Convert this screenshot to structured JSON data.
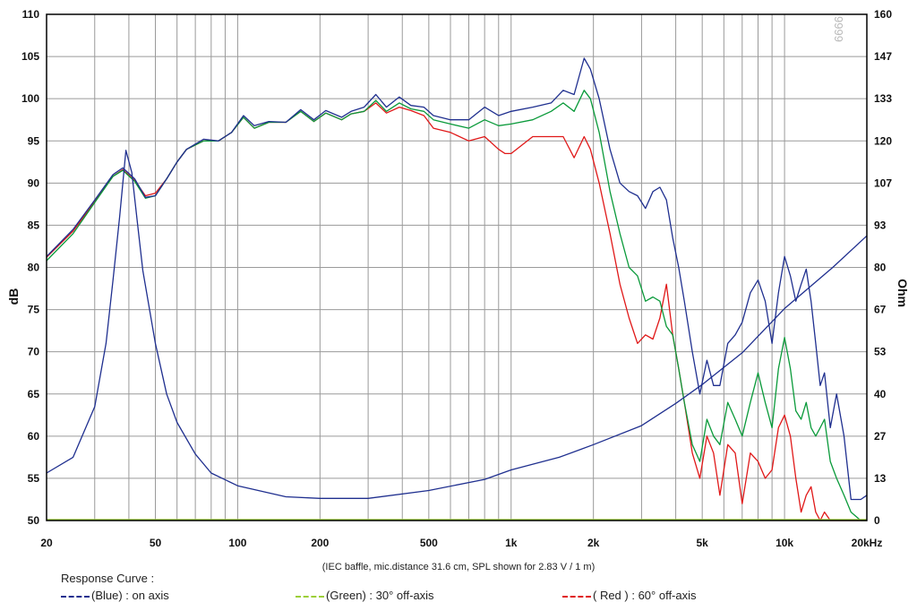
{
  "chart_data": {
    "type": "line",
    "ylabel_left": "dB",
    "ylabel_right": "Ohm",
    "x_scale": "log",
    "xlim": [
      20,
      20000
    ],
    "ylim_left": [
      50,
      110
    ],
    "ylim_right": [
      0,
      160
    ],
    "grid": true,
    "x_tick_labels": [
      {
        "value": 20,
        "label": "20"
      },
      {
        "value": 50,
        "label": "50"
      },
      {
        "value": 100,
        "label": "100"
      },
      {
        "value": 200,
        "label": "200"
      },
      {
        "value": 500,
        "label": "500"
      },
      {
        "value": 1000,
        "label": "1k"
      },
      {
        "value": 2000,
        "label": "2k"
      },
      {
        "value": 5000,
        "label": "5k"
      },
      {
        "value": 10000,
        "label": "10k"
      },
      {
        "value": 20000,
        "label": "20kHz"
      }
    ],
    "y_ticks_left": [
      110,
      105,
      100,
      95,
      90,
      85,
      80,
      75,
      70,
      65,
      60,
      55,
      50
    ],
    "y_ticks_right": [
      "160",
      "147",
      "133",
      "120",
      "107",
      "93",
      "80",
      "67",
      "53",
      "40",
      "27",
      "13",
      "0"
    ],
    "series": [
      {
        "name": "(Blue) : on axis",
        "color": "#1f2f8f",
        "axis": "left",
        "points": [
          [
            20,
            81.3
          ],
          [
            25,
            84.5
          ],
          [
            30,
            88
          ],
          [
            35,
            91
          ],
          [
            38,
            91.8
          ],
          [
            42,
            90.5
          ],
          [
            46,
            88.3
          ],
          [
            50,
            88.5
          ],
          [
            55,
            90.5
          ],
          [
            60,
            92.5
          ],
          [
            65,
            94
          ],
          [
            75,
            95.2
          ],
          [
            85,
            95
          ],
          [
            95,
            96
          ],
          [
            105,
            98
          ],
          [
            115,
            96.8
          ],
          [
            130,
            97.3
          ],
          [
            150,
            97.2
          ],
          [
            170,
            98.7
          ],
          [
            190,
            97.5
          ],
          [
            210,
            98.6
          ],
          [
            240,
            97.8
          ],
          [
            260,
            98.5
          ],
          [
            290,
            99
          ],
          [
            320,
            100.5
          ],
          [
            350,
            99
          ],
          [
            390,
            100.2
          ],
          [
            430,
            99.2
          ],
          [
            480,
            99
          ],
          [
            520,
            98
          ],
          [
            600,
            97.5
          ],
          [
            700,
            97.5
          ],
          [
            800,
            99
          ],
          [
            900,
            98
          ],
          [
            1000,
            98.5
          ],
          [
            1200,
            99
          ],
          [
            1400,
            99.5
          ],
          [
            1550,
            101
          ],
          [
            1700,
            100.5
          ],
          [
            1850,
            104.8
          ],
          [
            1950,
            103.5
          ],
          [
            2100,
            100
          ],
          [
            2300,
            94
          ],
          [
            2500,
            90
          ],
          [
            2700,
            89
          ],
          [
            2900,
            88.5
          ],
          [
            3100,
            87
          ],
          [
            3300,
            89
          ],
          [
            3500,
            89.5
          ],
          [
            3700,
            88
          ],
          [
            3900,
            83.5
          ],
          [
            4100,
            80
          ],
          [
            4300,
            76
          ],
          [
            4600,
            70
          ],
          [
            4900,
            65
          ],
          [
            5200,
            69
          ],
          [
            5500,
            66
          ],
          [
            5800,
            66
          ],
          [
            6200,
            71
          ],
          [
            6600,
            72
          ],
          [
            7000,
            73.5
          ],
          [
            7500,
            77
          ],
          [
            8000,
            78.5
          ],
          [
            8500,
            76
          ],
          [
            9000,
            71
          ],
          [
            9500,
            77
          ],
          [
            10000,
            81.3
          ],
          [
            10500,
            79
          ],
          [
            11000,
            76
          ],
          [
            11500,
            78
          ],
          [
            12000,
            79.8
          ],
          [
            12500,
            76
          ],
          [
            13000,
            71
          ],
          [
            13500,
            66
          ],
          [
            14000,
            67.5
          ],
          [
            14700,
            61
          ],
          [
            15500,
            65
          ],
          [
            16500,
            60
          ],
          [
            17500,
            52.5
          ],
          [
            19000,
            52.5
          ],
          [
            20000,
            53
          ]
        ]
      },
      {
        "name": "(Green) : 30° off-axis",
        "color": "#0a9a3a",
        "axis": "left",
        "points": [
          [
            20,
            80.8
          ],
          [
            25,
            84
          ],
          [
            30,
            87.7
          ],
          [
            35,
            90.8
          ],
          [
            38,
            91.5
          ],
          [
            42,
            90.2
          ],
          [
            46,
            88.2
          ],
          [
            50,
            88.5
          ],
          [
            55,
            90.5
          ],
          [
            60,
            92.5
          ],
          [
            65,
            94
          ],
          [
            75,
            95
          ],
          [
            85,
            95
          ],
          [
            95,
            96
          ],
          [
            105,
            97.8
          ],
          [
            115,
            96.5
          ],
          [
            130,
            97.2
          ],
          [
            150,
            97.2
          ],
          [
            170,
            98.5
          ],
          [
            190,
            97.3
          ],
          [
            210,
            98.3
          ],
          [
            240,
            97.5
          ],
          [
            260,
            98.2
          ],
          [
            290,
            98.5
          ],
          [
            320,
            99.8
          ],
          [
            350,
            98.5
          ],
          [
            390,
            99.5
          ],
          [
            430,
            98.8
          ],
          [
            480,
            98.5
          ],
          [
            520,
            97.5
          ],
          [
            600,
            97
          ],
          [
            700,
            96.5
          ],
          [
            800,
            97.5
          ],
          [
            900,
            96.8
          ],
          [
            1000,
            97
          ],
          [
            1200,
            97.5
          ],
          [
            1400,
            98.5
          ],
          [
            1550,
            99.5
          ],
          [
            1700,
            98.5
          ],
          [
            1850,
            101
          ],
          [
            1950,
            100
          ],
          [
            2100,
            96
          ],
          [
            2300,
            89
          ],
          [
            2500,
            84
          ],
          [
            2700,
            80
          ],
          [
            2900,
            79
          ],
          [
            3100,
            76
          ],
          [
            3300,
            76.5
          ],
          [
            3500,
            76
          ],
          [
            3700,
            73
          ],
          [
            3900,
            72
          ],
          [
            4100,
            68
          ],
          [
            4300,
            64
          ],
          [
            4600,
            59
          ],
          [
            4900,
            57
          ],
          [
            5200,
            62
          ],
          [
            5500,
            60
          ],
          [
            5800,
            59
          ],
          [
            6200,
            64
          ],
          [
            6600,
            62
          ],
          [
            7000,
            60
          ],
          [
            7500,
            64
          ],
          [
            8000,
            67.5
          ],
          [
            8500,
            64
          ],
          [
            9000,
            61
          ],
          [
            9500,
            68
          ],
          [
            10000,
            71.7
          ],
          [
            10500,
            68
          ],
          [
            11000,
            63
          ],
          [
            11500,
            62
          ],
          [
            12000,
            64
          ],
          [
            12500,
            61
          ],
          [
            13000,
            60
          ],
          [
            13500,
            61
          ],
          [
            14000,
            62
          ],
          [
            14700,
            57
          ],
          [
            15500,
            55
          ],
          [
            16500,
            53
          ],
          [
            17500,
            51
          ],
          [
            19000,
            50
          ],
          [
            20000,
            50
          ]
        ]
      },
      {
        "name": "( Red ) : 60° off-axis",
        "color": "#e01818",
        "axis": "left",
        "points": [
          [
            20,
            81.2
          ],
          [
            25,
            84.3
          ],
          [
            30,
            87.8
          ],
          [
            35,
            90.8
          ],
          [
            38,
            91.6
          ],
          [
            42,
            90.3
          ],
          [
            46,
            88.5
          ],
          [
            50,
            88.8
          ],
          [
            55,
            90.5
          ],
          [
            60,
            92.5
          ],
          [
            65,
            94
          ],
          [
            75,
            95
          ],
          [
            85,
            95
          ],
          [
            95,
            96
          ],
          [
            105,
            97.8
          ],
          [
            115,
            96.5
          ],
          [
            130,
            97.2
          ],
          [
            150,
            97.2
          ],
          [
            170,
            98.5
          ],
          [
            190,
            97.3
          ],
          [
            210,
            98.3
          ],
          [
            240,
            97.5
          ],
          [
            260,
            98.2
          ],
          [
            290,
            98.5
          ],
          [
            320,
            99.5
          ],
          [
            350,
            98.3
          ],
          [
            390,
            99
          ],
          [
            430,
            98.6
          ],
          [
            480,
            98
          ],
          [
            520,
            96.5
          ],
          [
            600,
            96
          ],
          [
            700,
            95
          ],
          [
            800,
            95.5
          ],
          [
            900,
            94
          ],
          [
            950,
            93.5
          ],
          [
            1000,
            93.5
          ],
          [
            1200,
            95.5
          ],
          [
            1400,
            95.5
          ],
          [
            1550,
            95.5
          ],
          [
            1700,
            93
          ],
          [
            1850,
            95.5
          ],
          [
            1950,
            94
          ],
          [
            2100,
            90
          ],
          [
            2300,
            84
          ],
          [
            2500,
            78
          ],
          [
            2700,
            74
          ],
          [
            2900,
            71
          ],
          [
            3100,
            72
          ],
          [
            3300,
            71.5
          ],
          [
            3500,
            74
          ],
          [
            3700,
            78
          ],
          [
            3900,
            72
          ],
          [
            4100,
            68
          ],
          [
            4300,
            64
          ],
          [
            4600,
            58
          ],
          [
            4900,
            55
          ],
          [
            5200,
            60
          ],
          [
            5500,
            58
          ],
          [
            5800,
            53
          ],
          [
            6200,
            59
          ],
          [
            6600,
            58
          ],
          [
            7000,
            52
          ],
          [
            7500,
            58
          ],
          [
            8000,
            57
          ],
          [
            8500,
            55
          ],
          [
            9000,
            56
          ],
          [
            9500,
            61
          ],
          [
            10000,
            62.5
          ],
          [
            10500,
            60
          ],
          [
            11000,
            55
          ],
          [
            11500,
            51
          ],
          [
            12000,
            53
          ],
          [
            12500,
            54
          ],
          [
            13000,
            51
          ],
          [
            13500,
            50
          ],
          [
            14000,
            51
          ],
          [
            14700,
            50
          ],
          [
            15500,
            50
          ],
          [
            17000,
            50
          ],
          [
            20000,
            50
          ]
        ]
      },
      {
        "name": "impedance",
        "color": "#1f2f8f",
        "axis": "right",
        "points": [
          [
            20,
            15
          ],
          [
            25,
            20
          ],
          [
            30,
            36
          ],
          [
            33,
            56
          ],
          [
            35,
            76
          ],
          [
            37,
            96
          ],
          [
            39,
            117
          ],
          [
            41,
            110
          ],
          [
            43,
            94
          ],
          [
            45,
            79
          ],
          [
            50,
            56
          ],
          [
            55,
            40
          ],
          [
            60,
            31
          ],
          [
            70,
            21
          ],
          [
            80,
            15
          ],
          [
            100,
            11
          ],
          [
            150,
            7.5
          ],
          [
            200,
            7
          ],
          [
            300,
            7
          ],
          [
            500,
            9.5
          ],
          [
            800,
            13
          ],
          [
            1000,
            16
          ],
          [
            1500,
            20
          ],
          [
            1800,
            22.5
          ],
          [
            2000,
            24
          ],
          [
            3000,
            30
          ],
          [
            4000,
            37
          ],
          [
            5000,
            43
          ],
          [
            7000,
            53
          ],
          [
            10000,
            67
          ],
          [
            15000,
            80
          ],
          [
            20000,
            90
          ]
        ]
      }
    ]
  },
  "caption": "(IEC baffle, mic.distance 31.6 cm, SPL shown for 2.83 V / 1 m)",
  "legend": {
    "title": "Response Curve :",
    "items": [
      {
        "label": "(Blue)  : on axis",
        "color": "#1f2f8f"
      },
      {
        "label": "(Green) : 30° off-axis",
        "color": "#9ccf38"
      },
      {
        "label": "( Red ) : 60° off-axis",
        "color": "#e01818"
      }
    ]
  },
  "watermark": "9999"
}
